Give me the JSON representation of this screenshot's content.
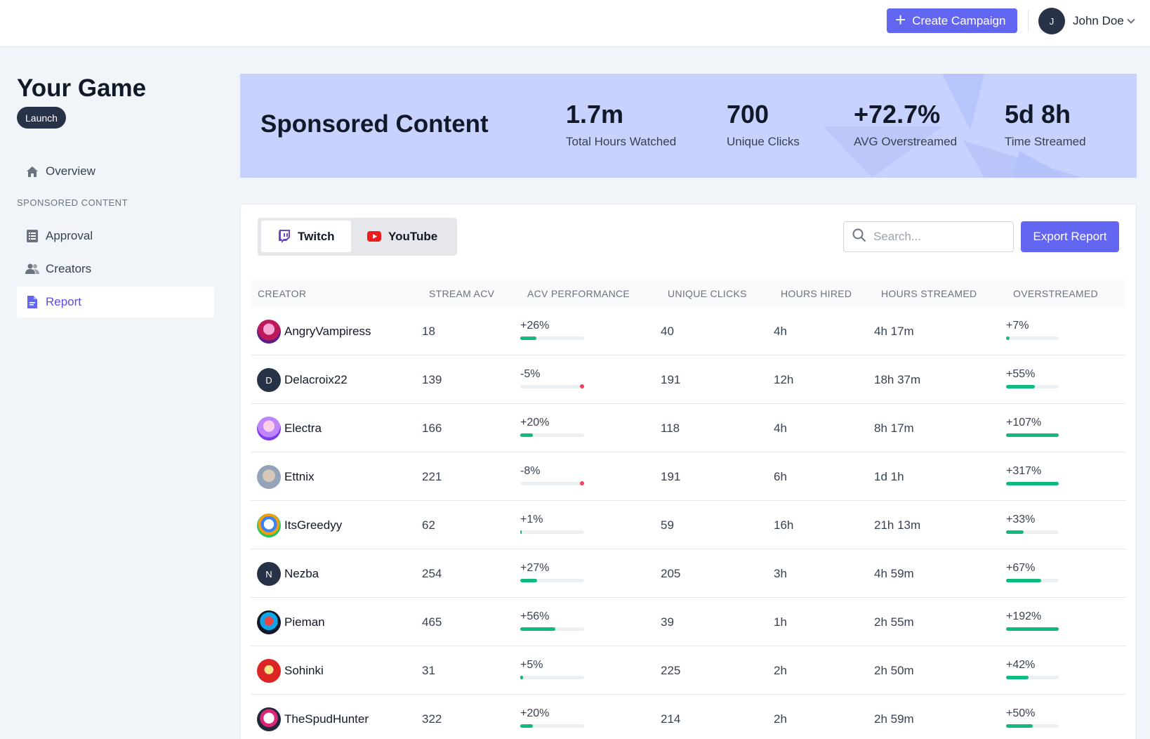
{
  "topbar": {
    "create_label": "Create Campaign",
    "user_initial": "J",
    "user_name": "John Doe"
  },
  "sidebar": {
    "game_title": "Your Game",
    "badge": "Launch",
    "overview_label": "Overview",
    "section_label": "SPONSORED CONTENT",
    "items": [
      {
        "label": "Approval",
        "icon": "list-icon"
      },
      {
        "label": "Creators",
        "icon": "users-icon"
      },
      {
        "label": "Report",
        "icon": "document-icon",
        "active": true
      }
    ]
  },
  "hero": {
    "title": "Sponsored Content",
    "stats": [
      {
        "value": "1.7m",
        "label": "Total Hours Watched"
      },
      {
        "value": "700",
        "label": "Unique Clicks"
      },
      {
        "value": "+72.7%",
        "label": "AVG Overstreamed"
      },
      {
        "value": "5d 8h",
        "label": "Time Streamed"
      }
    ]
  },
  "tabs": [
    {
      "label": "Twitch",
      "active": true
    },
    {
      "label": "YouTube",
      "active": false
    }
  ],
  "search": {
    "placeholder": "Search...",
    "value": ""
  },
  "export_label": "Export Report",
  "colors": {
    "accent": "#6366f1",
    "positive": "#10b981",
    "negative": "#f43f5e",
    "hero_bg": "#c7d2fe"
  },
  "table": {
    "columns": [
      "CREATOR",
      "STREAM ACV",
      "ACV PERFORMANCE",
      "UNIQUE CLICKS",
      "HOURS HIRED",
      "HOURS STREAMED",
      "OVERSTREAMED"
    ],
    "rows": [
      {
        "creator": "AngryVampiress",
        "avatar": "image",
        "acv": "18",
        "perf": "+26%",
        "perf_pct": 26,
        "clicks": "40",
        "hired": "4h",
        "streamed": "4h 17m",
        "over": "+7%",
        "over_pct": 7
      },
      {
        "creator": "Delacroix22",
        "avatar": "D",
        "acv": "139",
        "perf": "-5%",
        "perf_pct": -5,
        "clicks": "191",
        "hired": "12h",
        "streamed": "18h 37m",
        "over": "+55%",
        "over_pct": 55
      },
      {
        "creator": "Electra",
        "avatar": "image",
        "acv": "166",
        "perf": "+20%",
        "perf_pct": 20,
        "clicks": "118",
        "hired": "4h",
        "streamed": "8h 17m",
        "over": "+107%",
        "over_pct": 107
      },
      {
        "creator": "Ettnix",
        "avatar": "image",
        "acv": "221",
        "perf": "-8%",
        "perf_pct": -8,
        "clicks": "191",
        "hired": "6h",
        "streamed": "1d 1h",
        "over": "+317%",
        "over_pct": 317
      },
      {
        "creator": "ItsGreedyy",
        "avatar": "image",
        "acv": "62",
        "perf": "+1%",
        "perf_pct": 1,
        "clicks": "59",
        "hired": "16h",
        "streamed": "21h 13m",
        "over": "+33%",
        "over_pct": 33
      },
      {
        "creator": "Nezba",
        "avatar": "N",
        "acv": "254",
        "perf": "+27%",
        "perf_pct": 27,
        "clicks": "205",
        "hired": "3h",
        "streamed": "4h 59m",
        "over": "+67%",
        "over_pct": 67
      },
      {
        "creator": "Pieman",
        "avatar": "image",
        "acv": "465",
        "perf": "+56%",
        "perf_pct": 56,
        "clicks": "39",
        "hired": "1h",
        "streamed": "2h 55m",
        "over": "+192%",
        "over_pct": 192
      },
      {
        "creator": "Sohinki",
        "avatar": "image",
        "acv": "31",
        "perf": "+5%",
        "perf_pct": 5,
        "clicks": "225",
        "hired": "2h",
        "streamed": "2h 50m",
        "over": "+42%",
        "over_pct": 42
      },
      {
        "creator": "TheSpudHunter",
        "avatar": "image",
        "acv": "322",
        "perf": "+20%",
        "perf_pct": 20,
        "clicks": "214",
        "hired": "2h",
        "streamed": "2h 59m",
        "over": "+50%",
        "over_pct": 50
      }
    ]
  }
}
